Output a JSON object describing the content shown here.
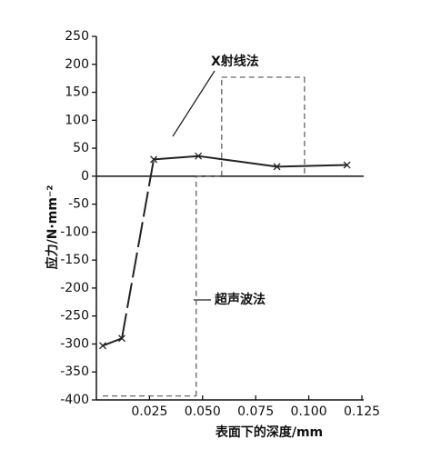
{
  "chart_data": {
    "type": "line",
    "x_label": "表面下的深度/mm",
    "y_label": "应力/N·mm⁻²",
    "xlim": [
      0,
      0.125
    ],
    "ylim": [
      -400,
      250
    ],
    "xticks": [
      0.025,
      {
        "value": 0.05,
        "label": "0.050"
      },
      0.075,
      {
        "value": 0.1,
        "label": "0.100"
      },
      0.125
    ],
    "yticks": [
      250,
      200,
      150,
      100,
      50,
      0,
      -50,
      -100,
      -150,
      -200,
      -250,
      -300,
      -350,
      -400
    ],
    "series": [
      {
        "name": "X射线法",
        "color": "#222222",
        "x": [
          0.003,
          0.012,
          0.027,
          0.048,
          0.085,
          0.118
        ],
        "values": [
          -303,
          -290,
          30,
          36,
          17,
          20
        ],
        "segment_styles": [
          "solid",
          "dashed",
          "solid",
          "solid",
          "solid"
        ]
      },
      {
        "name": "超声波法",
        "color": "#555555",
        "x": [
          0.003,
          0.047,
          0.047,
          0.059,
          0.059,
          0.098,
          0.098
        ],
        "values": [
          -393,
          -393,
          0,
          0,
          177,
          177,
          0
        ],
        "segment_styles": [
          "dashed",
          "dashed",
          "dashed",
          "dashed",
          "dashed",
          "dashed"
        ]
      }
    ]
  }
}
